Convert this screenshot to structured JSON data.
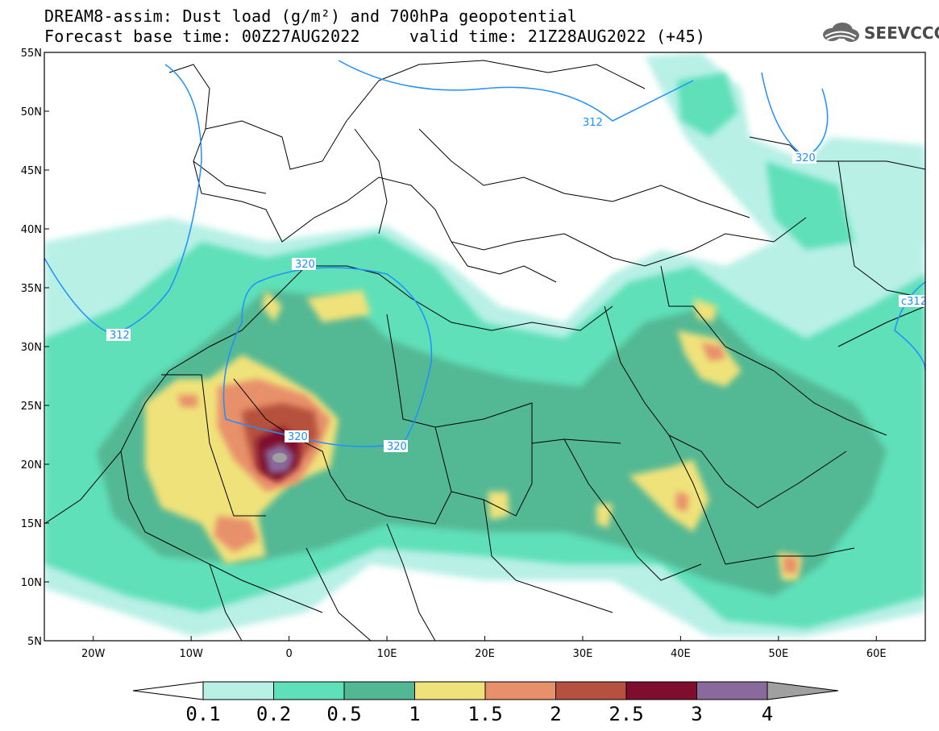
{
  "title_line1": "DREAM8-assim: Dust load (g/m²) and 700hPa geopotential",
  "title_line2": "Forecast base time: 00Z27AUG2022     valid time: 21Z28AUG2022 (+45)",
  "logo_text": "SEEVCCC",
  "map": {
    "lon_range": [
      -25,
      65
    ],
    "lat_range": [
      5,
      55
    ],
    "lat_labels": [
      {
        "lat": 55,
        "text": "55N"
      },
      {
        "lat": 50,
        "text": "50N"
      },
      {
        "lat": 45,
        "text": "45N"
      },
      {
        "lat": 40,
        "text": "40N"
      },
      {
        "lat": 35,
        "text": "35N"
      },
      {
        "lat": 30,
        "text": "30N"
      },
      {
        "lat": 25,
        "text": "25N"
      },
      {
        "lat": 20,
        "text": "20N"
      },
      {
        "lat": 15,
        "text": "15N"
      },
      {
        "lat": 10,
        "text": "10N"
      },
      {
        "lat": 5,
        "text": "5N"
      }
    ],
    "lon_labels": [
      {
        "lon": -20,
        "text": "20W"
      },
      {
        "lon": -10,
        "text": "10W"
      },
      {
        "lon": 0,
        "text": "0"
      },
      {
        "lon": 10,
        "text": "10E"
      },
      {
        "lon": 20,
        "text": "20E"
      },
      {
        "lon": 30,
        "text": "30E"
      },
      {
        "lon": 40,
        "text": "40E"
      },
      {
        "lon": 50,
        "text": "50E"
      },
      {
        "lon": 60,
        "text": "60E"
      }
    ],
    "isoline_labels": [
      "312",
      "320",
      "320",
      "320",
      "320",
      "312",
      "c312"
    ]
  },
  "colorbar": {
    "colors": [
      "#b8f0e6",
      "#5ee0b8",
      "#52b894",
      "#f0e27a",
      "#e8906a",
      "#b5513e",
      "#7e0d2e",
      "#8a6a9c"
    ],
    "under_color": "#ffffff",
    "over_color": "#a0a0a0",
    "labels": [
      "0.1",
      "0.2",
      "0.5",
      "1",
      "1.5",
      "2",
      "2.5",
      "3",
      "4"
    ]
  },
  "colors": {
    "isoline": "#1e90ff",
    "border": "#000000"
  }
}
